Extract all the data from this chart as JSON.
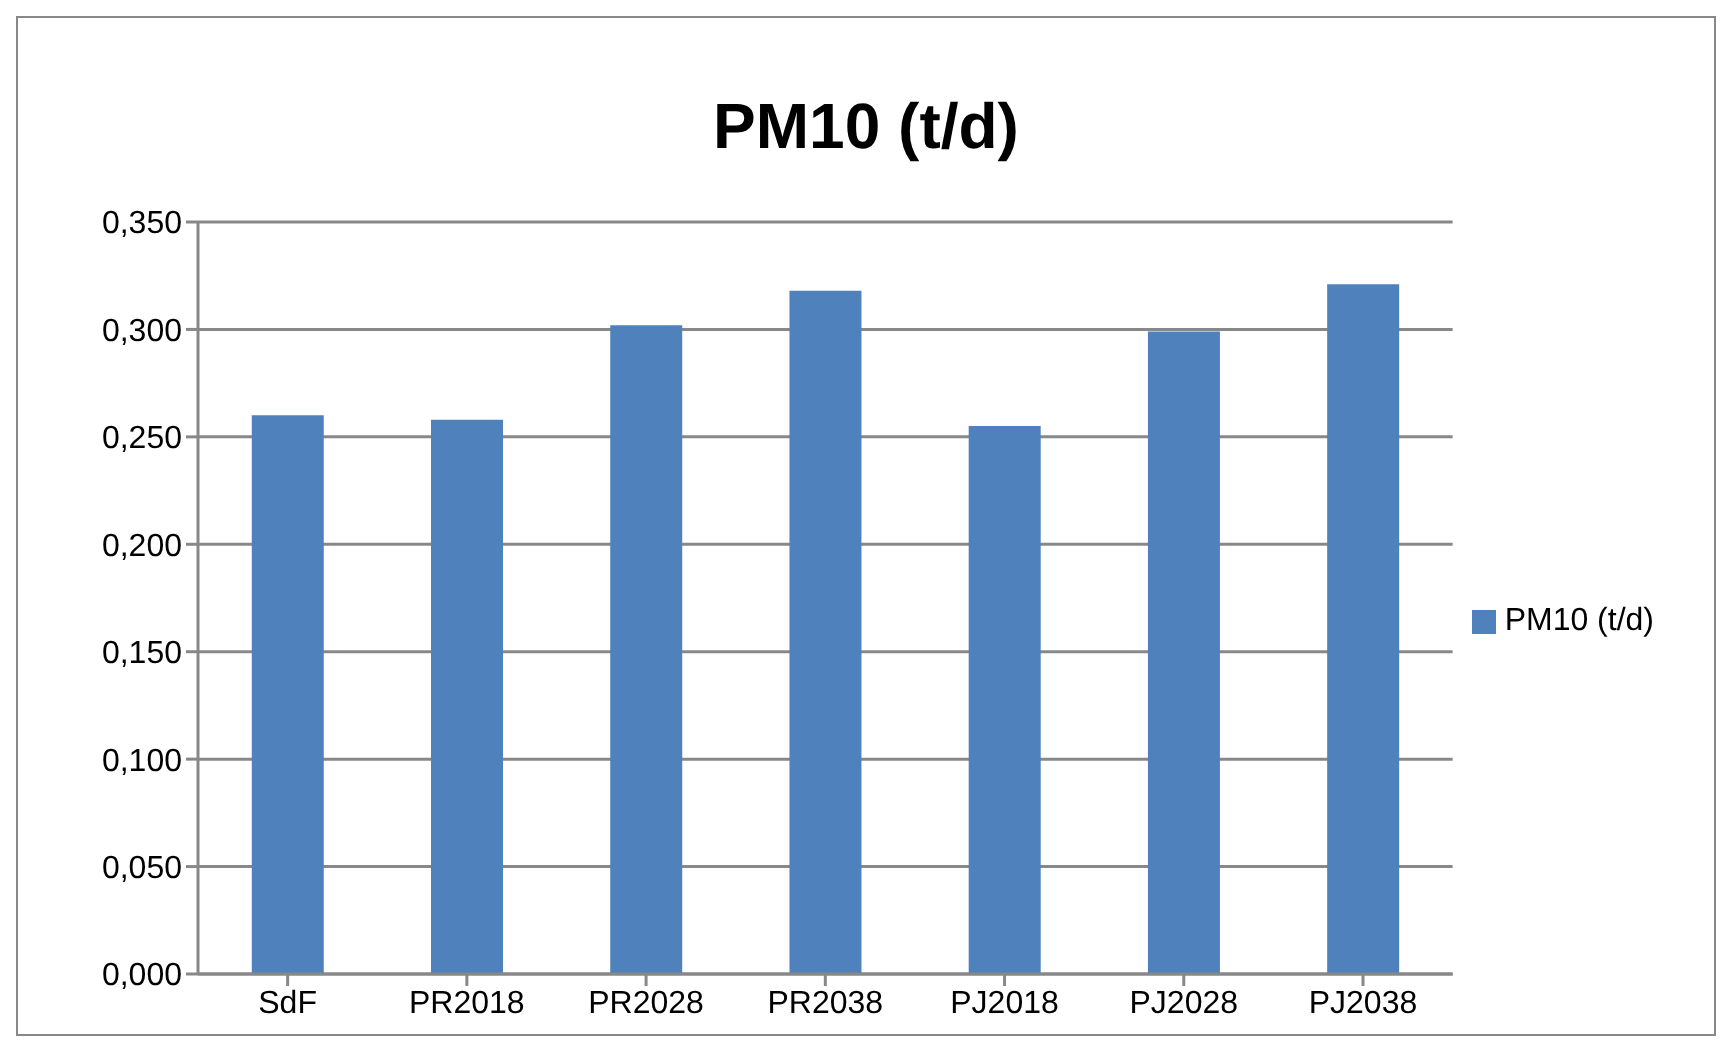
{
  "chart_data": {
    "type": "bar",
    "title": "PM10 (t/d)",
    "categories": [
      "SdF",
      "PR2018",
      "PR2028",
      "PR2038",
      "PJ2018",
      "PJ2028",
      "PJ2038"
    ],
    "series": [
      {
        "name": "PM10 (t/d)",
        "color": "#4f81bd",
        "values": [
          0.26,
          0.258,
          0.302,
          0.318,
          0.255,
          0.299,
          0.321
        ]
      }
    ],
    "ylim": [
      0,
      0.35
    ],
    "yticks": [
      {
        "value": 0,
        "label": "0,000"
      },
      {
        "value": 0.05,
        "label": "0,050"
      },
      {
        "value": 0.1,
        "label": "0,100"
      },
      {
        "value": 0.15,
        "label": "0,150"
      },
      {
        "value": 0.2,
        "label": "0,200"
      },
      {
        "value": 0.25,
        "label": "0,250"
      },
      {
        "value": 0.3,
        "label": "0,300"
      },
      {
        "value": 0.35,
        "label": "0,350"
      }
    ],
    "grid": "y",
    "legend": "right"
  }
}
